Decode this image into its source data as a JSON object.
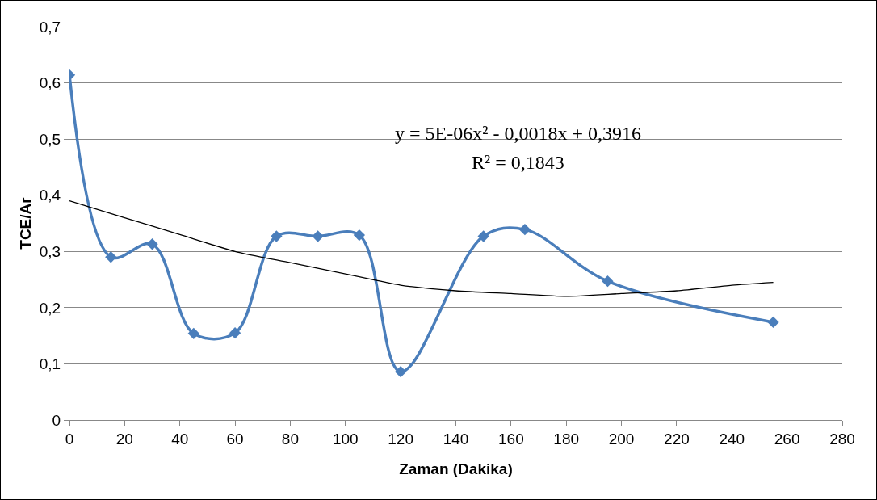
{
  "chart_data": {
    "type": "line",
    "xlabel": "Zaman (Dakika)",
    "ylabel": "TCE/Ar",
    "x": [
      0,
      15,
      30,
      45,
      60,
      75,
      90,
      105,
      120,
      150,
      165,
      195,
      255
    ],
    "series": [
      {
        "color": "#4a7ebb",
        "marker": "diamond",
        "values": [
          0.614,
          0.29,
          0.313,
          0.154,
          0.155,
          0.327,
          0.327,
          0.329,
          0.086,
          0.327,
          0.339,
          0.247,
          0.174
        ]
      },
      {
        "type": "line",
        "color": "#000000",
        "marker": "none",
        "x": [
          0,
          20,
          40,
          60,
          80,
          100,
          120,
          140,
          160,
          180,
          200,
          220,
          240,
          255
        ],
        "values": [
          0.39,
          0.36,
          0.33,
          0.3,
          0.28,
          0.26,
          0.24,
          0.23,
          0.225,
          0.22,
          0.225,
          0.23,
          0.24,
          0.245
        ]
      }
    ],
    "annotations": [
      "y = 5E-06x² - 0,0018x + 0,3916",
      "R² = 0,1843"
    ],
    "xlim": [
      0,
      280
    ],
    "xticks": [
      0,
      20,
      40,
      60,
      80,
      100,
      120,
      140,
      160,
      180,
      200,
      220,
      240,
      260,
      280
    ],
    "ylim": [
      0,
      0.7
    ],
    "yticks": [
      0,
      {
        "value": 0.1,
        "label": "0,1"
      },
      {
        "value": 0.2,
        "label": "0,2"
      },
      {
        "value": 0.3,
        "label": "0,3"
      },
      {
        "value": 0.4,
        "label": "0,4"
      },
      {
        "value": 0.5,
        "label": "0,5"
      },
      {
        "value": 0.6,
        "label": "0,6"
      },
      {
        "value": 0.7,
        "label": "0,7"
      }
    ],
    "grid": "y"
  }
}
